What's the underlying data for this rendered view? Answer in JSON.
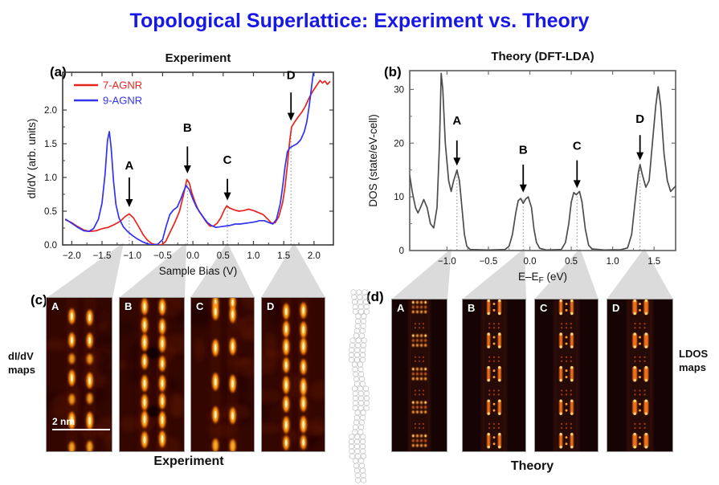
{
  "page_title": "Topological Superlattice: Experiment vs. Theory",
  "colors": {
    "title_blue": "#1717e8",
    "red_series": "#e8241f",
    "blue_series": "#3232f0",
    "dos_gray": "#4d4d4d",
    "funnel_gray": "#dbdbdb"
  },
  "panel_a": {
    "tag": "(a)"
  },
  "panel_b": {
    "tag": "(b)"
  },
  "panel_c": {
    "tag": "(c)",
    "side_label_line1": "dI/dV",
    "side_label_line2": "maps",
    "caption": "Experiment",
    "scale_bar": "2 nm",
    "maps": [
      {
        "label": "A"
      },
      {
        "label": "B"
      },
      {
        "label": "C"
      },
      {
        "label": "D"
      }
    ]
  },
  "panel_d": {
    "tag": "(d)",
    "side_label_line1": "LDOS",
    "side_label_line2": "maps",
    "caption": "Theory",
    "maps": [
      {
        "label": "A"
      },
      {
        "label": "B"
      },
      {
        "label": "C"
      },
      {
        "label": "D"
      }
    ]
  },
  "chart_data": [
    {
      "id": "chart-a",
      "type": "line",
      "title": "Experiment",
      "xlabel": "Sample Bias (V)",
      "ylabel": "dI/dV (arb. units)",
      "xlim": [
        -2.15,
        2.32
      ],
      "ylim": [
        0,
        2.56
      ],
      "xticks": [
        -2.0,
        -1.5,
        -1.0,
        -0.5,
        0.0,
        0.5,
        1.0,
        1.5,
        2.0
      ],
      "yticks": [
        0.0,
        0.5,
        1.0,
        1.5,
        2.0
      ],
      "grid": false,
      "legend_position": "top-left",
      "series": [
        {
          "name": "7-AGNR",
          "color": "#e8241f",
          "x": [
            -2.1,
            -2.0,
            -1.9,
            -1.8,
            -1.7,
            -1.6,
            -1.5,
            -1.4,
            -1.3,
            -1.2,
            -1.12,
            -1.05,
            -0.98,
            -0.9,
            -0.82,
            -0.75,
            -0.68,
            -0.6,
            -0.52,
            -0.45,
            -0.38,
            -0.3,
            -0.22,
            -0.16,
            -0.1,
            -0.06,
            -0.02,
            0.04,
            0.1,
            0.16,
            0.22,
            0.28,
            0.34,
            0.4,
            0.46,
            0.52,
            0.56,
            0.6,
            0.68,
            0.76,
            0.84,
            0.92,
            1.0,
            1.08,
            1.16,
            1.24,
            1.3,
            1.36,
            1.42,
            1.48,
            1.52,
            1.56,
            1.6,
            1.63,
            1.68,
            1.74,
            1.8,
            1.86,
            1.92,
            1.98,
            2.04,
            2.1,
            2.14,
            2.18,
            2.22,
            2.26
          ],
          "y": [
            0.37,
            0.33,
            0.27,
            0.22,
            0.2,
            0.21,
            0.24,
            0.26,
            0.3,
            0.35,
            0.42,
            0.46,
            0.4,
            0.28,
            0.15,
            0.07,
            0.02,
            0.0,
            0.0,
            0.05,
            0.18,
            0.33,
            0.5,
            0.72,
            0.97,
            0.92,
            0.78,
            0.62,
            0.5,
            0.42,
            0.34,
            0.28,
            0.28,
            0.32,
            0.4,
            0.52,
            0.58,
            0.55,
            0.52,
            0.5,
            0.51,
            0.53,
            0.51,
            0.48,
            0.45,
            0.38,
            0.32,
            0.33,
            0.42,
            0.62,
            0.85,
            1.18,
            1.55,
            1.75,
            1.82,
            1.9,
            1.97,
            2.06,
            2.18,
            2.28,
            2.36,
            2.44,
            2.4,
            2.43,
            2.38,
            2.42
          ]
        },
        {
          "name": "9-AGNR",
          "color": "#3232f0",
          "x": [
            -2.1,
            -2.0,
            -1.9,
            -1.8,
            -1.72,
            -1.64,
            -1.56,
            -1.5,
            -1.45,
            -1.41,
            -1.38,
            -1.35,
            -1.31,
            -1.27,
            -1.22,
            -1.15,
            -1.08,
            -1.0,
            -0.92,
            -0.84,
            -0.76,
            -0.68,
            -0.58,
            -0.5,
            -0.44,
            -0.38,
            -0.32,
            -0.26,
            -0.2,
            -0.15,
            -0.11,
            -0.06,
            0.0,
            0.06,
            0.12,
            0.18,
            0.24,
            0.3,
            0.38,
            0.46,
            0.54,
            0.62,
            0.7,
            0.78,
            0.86,
            0.94,
            1.02,
            1.1,
            1.18,
            1.26,
            1.32,
            1.38,
            1.44,
            1.48,
            1.52,
            1.56,
            1.6,
            1.66,
            1.72,
            1.78,
            1.84,
            1.88,
            1.92,
            1.96,
            1.99
          ],
          "y": [
            0.38,
            0.32,
            0.26,
            0.21,
            0.2,
            0.24,
            0.38,
            0.62,
            1.05,
            1.55,
            1.68,
            1.45,
            0.95,
            0.6,
            0.4,
            0.27,
            0.2,
            0.14,
            0.09,
            0.05,
            0.02,
            0.0,
            0.01,
            0.08,
            0.28,
            0.45,
            0.52,
            0.56,
            0.68,
            0.8,
            0.88,
            0.82,
            0.68,
            0.56,
            0.48,
            0.4,
            0.33,
            0.29,
            0.26,
            0.27,
            0.28,
            0.29,
            0.31,
            0.31,
            0.32,
            0.33,
            0.34,
            0.36,
            0.36,
            0.33,
            0.31,
            0.38,
            0.6,
            0.85,
            1.15,
            1.38,
            1.44,
            1.47,
            1.5,
            1.56,
            1.68,
            1.82,
            2.05,
            2.35,
            2.56
          ]
        }
      ],
      "annotations": [
        {
          "label": "A",
          "x": -1.05,
          "label_y": 1.12,
          "arrow_from": 1.0,
          "arrow_to": 0.56,
          "line_top": 0.46
        },
        {
          "label": "B",
          "x": -0.09,
          "label_y": 1.68,
          "arrow_from": 1.46,
          "arrow_to": 1.06,
          "line_top": 0.97
        },
        {
          "label": "C",
          "x": 0.57,
          "label_y": 1.2,
          "arrow_from": 0.98,
          "arrow_to": 0.66,
          "line_top": 0.58
        },
        {
          "label": "D",
          "x": 1.62,
          "label_y": 2.46,
          "arrow_from": 2.26,
          "arrow_to": 1.84,
          "line_top": 1.75
        }
      ]
    },
    {
      "id": "chart-b",
      "type": "line",
      "title": "Theory (DFT-LDA)",
      "xlabel": "E–E_F (eV)",
      "ylabel": "DOS (state/eV-cell)",
      "xlim": [
        -1.45,
        1.76
      ],
      "ylim": [
        0,
        33.5
      ],
      "xticks": [
        -1.0,
        -0.5,
        0.0,
        0.5,
        1.0,
        1.5
      ],
      "yticks": [
        0,
        10,
        20,
        30
      ],
      "grid": false,
      "series": [
        {
          "name": "DOS",
          "color": "#4d4d4d",
          "x": [
            -1.45,
            -1.42,
            -1.38,
            -1.35,
            -1.32,
            -1.28,
            -1.24,
            -1.2,
            -1.16,
            -1.12,
            -1.09,
            -1.07,
            -1.05,
            -1.02,
            -0.98,
            -0.95,
            -0.92,
            -0.88,
            -0.85,
            -0.82,
            -0.79,
            -0.76,
            -0.72,
            -0.5,
            -0.3,
            -0.25,
            -0.21,
            -0.17,
            -0.14,
            -0.11,
            -0.08,
            -0.05,
            -0.02,
            0.02,
            0.05,
            0.08,
            0.12,
            0.2,
            0.38,
            0.43,
            0.47,
            0.5,
            0.53,
            0.56,
            0.6,
            0.63,
            0.67,
            0.71,
            0.75,
            0.9,
            1.1,
            1.18,
            1.23,
            1.27,
            1.31,
            1.33,
            1.36,
            1.4,
            1.44,
            1.48,
            1.52,
            1.55,
            1.58,
            1.62,
            1.66,
            1.7,
            1.73,
            1.76
          ],
          "y": [
            14,
            11,
            8,
            7,
            8,
            9.5,
            8,
            5,
            4.2,
            8,
            20,
            33,
            30,
            20,
            13,
            11,
            13,
            15,
            13,
            8,
            3,
            0.8,
            0.2,
            0.1,
            0.2,
            0.8,
            3,
            7,
            9.3,
            9.7,
            8.8,
            9.6,
            10.0,
            8,
            4,
            1.5,
            0.4,
            0.1,
            0.2,
            1.5,
            5,
            9,
            10.8,
            10.4,
            11.0,
            9,
            4,
            1,
            0.3,
            0.1,
            0.15,
            0.5,
            3,
            9,
            14.5,
            16,
            14,
            11.8,
            13,
            20,
            27,
            30.5,
            27,
            18,
            13,
            11,
            11.5,
            12
          ]
        }
      ],
      "annotations": [
        {
          "label": "A",
          "x": -0.88,
          "label_y": 23.5,
          "arrow_from": 20.5,
          "arrow_to": 15.8,
          "line_top": 15.0
        },
        {
          "label": "B",
          "x": -0.08,
          "label_y": 18.0,
          "arrow_from": 16.0,
          "arrow_to": 10.8,
          "line_top": 9.8
        },
        {
          "label": "C",
          "x": 0.57,
          "label_y": 18.8,
          "arrow_from": 16.8,
          "arrow_to": 11.6,
          "line_top": 11.0
        },
        {
          "label": "D",
          "x": 1.33,
          "label_y": 23.8,
          "arrow_from": 21.5,
          "arrow_to": 16.8,
          "line_top": 16.0
        }
      ]
    }
  ]
}
